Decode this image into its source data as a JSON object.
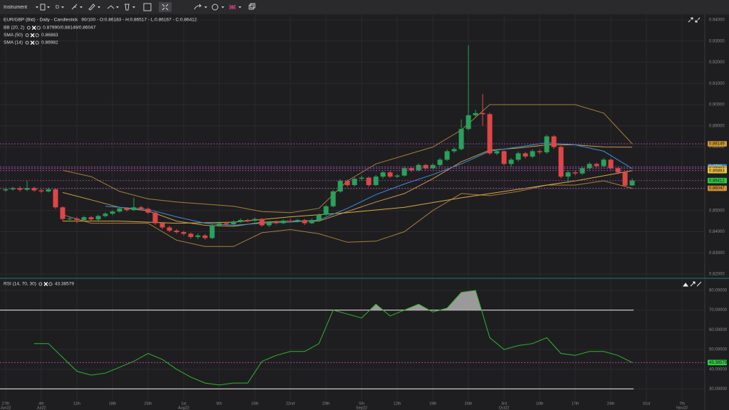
{
  "toolbar": {
    "instrument": "Instrument",
    "timeframe": "D"
  },
  "chart_data": [
    {
      "type": "candlestick",
      "title": "EUR/GBP (Bid) - Daily - Candlestick",
      "subtitle": "90/100 - O:0.86183 - H:0.86517 - L:0.86167 - C:0.86412",
      "x": [
        0,
        1,
        2,
        3,
        4,
        5,
        6,
        7,
        8,
        9,
        10,
        11,
        12,
        13,
        14,
        15,
        16,
        17,
        18,
        19,
        20,
        21,
        22,
        23,
        24,
        25,
        26,
        27,
        28,
        29,
        30,
        31,
        32,
        33,
        34,
        35,
        36,
        37,
        38,
        39,
        40,
        41,
        42,
        43,
        44,
        45,
        46,
        47,
        48,
        49,
        50,
        51,
        52,
        53,
        54,
        55,
        56,
        57,
        58,
        59,
        60,
        61,
        62,
        63,
        64,
        65,
        66,
        67,
        68,
        69,
        70,
        71,
        72,
        73,
        74,
        75,
        76,
        77,
        78,
        79,
        80,
        81,
        82,
        83,
        84,
        85,
        86,
        87,
        88
      ],
      "open": [
        0.8595,
        0.86,
        0.8605,
        0.8598,
        0.8606,
        0.8595,
        0.859,
        0.86,
        0.8515,
        0.846,
        0.8462,
        0.8455,
        0.8468,
        0.8458,
        0.8474,
        0.8485,
        0.8495,
        0.851,
        0.8502,
        0.8515,
        0.8508,
        0.849,
        0.844,
        0.842,
        0.8405,
        0.8398,
        0.839,
        0.8375,
        0.8382,
        0.837,
        0.843,
        0.844,
        0.8435,
        0.8448,
        0.8455,
        0.8452,
        0.846,
        0.843,
        0.8445,
        0.844,
        0.8452,
        0.845,
        0.8455,
        0.844,
        0.8455,
        0.848,
        0.852,
        0.859,
        0.864,
        0.862,
        0.865,
        0.8655,
        0.862,
        0.866,
        0.868,
        0.866,
        0.8665,
        0.87,
        0.869,
        0.8715,
        0.87,
        0.8715,
        0.874,
        0.878,
        0.879,
        0.8885,
        0.895,
        0.896,
        0.8955,
        0.877,
        0.878,
        0.872,
        0.874,
        0.877,
        0.8755,
        0.878,
        0.8775,
        0.885,
        0.88,
        0.866,
        0.868,
        0.8675,
        0.87,
        0.872,
        0.871,
        0.874,
        0.87,
        0.868,
        0.86183
      ],
      "high": [
        0.8608,
        0.8612,
        0.8614,
        0.864,
        0.8612,
        0.8602,
        0.8608,
        0.8604,
        0.852,
        0.847,
        0.847,
        0.8475,
        0.8474,
        0.848,
        0.8492,
        0.8502,
        0.8518,
        0.8516,
        0.856,
        0.8522,
        0.8514,
        0.8495,
        0.8446,
        0.8428,
        0.8412,
        0.8404,
        0.8396,
        0.839,
        0.8388,
        0.8436,
        0.8448,
        0.8446,
        0.8454,
        0.8462,
        0.846,
        0.8466,
        0.8464,
        0.845,
        0.8452,
        0.8458,
        0.8462,
        0.846,
        0.846,
        0.8462,
        0.8486,
        0.8526,
        0.8596,
        0.8648,
        0.8646,
        0.8656,
        0.8664,
        0.866,
        0.8668,
        0.8686,
        0.8688,
        0.8672,
        0.8708,
        0.8706,
        0.8722,
        0.872,
        0.8722,
        0.8748,
        0.8788,
        0.8798,
        0.893,
        0.928,
        0.8975,
        0.905,
        0.8962,
        0.879,
        0.8786,
        0.8748,
        0.8778,
        0.8776,
        0.8788,
        0.8788,
        0.8858,
        0.8856,
        0.8806,
        0.869,
        0.8688,
        0.8708,
        0.8728,
        0.8726,
        0.8748,
        0.8746,
        0.8706,
        0.8686,
        0.86517
      ],
      "low": [
        0.8588,
        0.8594,
        0.859,
        0.8592,
        0.8588,
        0.8582,
        0.8585,
        0.8508,
        0.8452,
        0.8455,
        0.844,
        0.8448,
        0.845,
        0.8452,
        0.8468,
        0.8478,
        0.849,
        0.8495,
        0.8498,
        0.85,
        0.8484,
        0.8432,
        0.8412,
        0.8398,
        0.839,
        0.8382,
        0.8368,
        0.8366,
        0.8362,
        0.8365,
        0.8424,
        0.8428,
        0.843,
        0.8442,
        0.8445,
        0.8446,
        0.8424,
        0.8422,
        0.8434,
        0.8435,
        0.8444,
        0.8443,
        0.8432,
        0.8436,
        0.845,
        0.8474,
        0.8515,
        0.8584,
        0.8612,
        0.8614,
        0.8642,
        0.8612,
        0.8616,
        0.8652,
        0.8654,
        0.8654,
        0.866,
        0.8682,
        0.8684,
        0.8692,
        0.8694,
        0.8708,
        0.8734,
        0.8772,
        0.8784,
        0.8878,
        0.894,
        0.89,
        0.8762,
        0.8762,
        0.8712,
        0.8706,
        0.8732,
        0.8746,
        0.8748,
        0.8766,
        0.8768,
        0.8792,
        0.8652,
        0.863,
        0.8666,
        0.8668,
        0.8692,
        0.8702,
        0.8704,
        0.8692,
        0.8672,
        0.8612,
        0.86167
      ],
      "close": [
        0.86,
        0.8605,
        0.8598,
        0.8606,
        0.8595,
        0.859,
        0.86,
        0.8515,
        0.846,
        0.8462,
        0.8455,
        0.8468,
        0.8458,
        0.8474,
        0.8485,
        0.8495,
        0.851,
        0.8502,
        0.8515,
        0.8508,
        0.849,
        0.844,
        0.842,
        0.8405,
        0.8398,
        0.839,
        0.8375,
        0.8382,
        0.837,
        0.843,
        0.844,
        0.8435,
        0.8448,
        0.8455,
        0.8452,
        0.846,
        0.843,
        0.8445,
        0.844,
        0.8452,
        0.845,
        0.8455,
        0.844,
        0.8455,
        0.848,
        0.852,
        0.859,
        0.864,
        0.862,
        0.865,
        0.8655,
        0.862,
        0.866,
        0.868,
        0.866,
        0.8665,
        0.87,
        0.869,
        0.8715,
        0.87,
        0.8715,
        0.874,
        0.878,
        0.879,
        0.8885,
        0.895,
        0.896,
        0.8955,
        0.877,
        0.878,
        0.872,
        0.874,
        0.877,
        0.8755,
        0.878,
        0.8775,
        0.885,
        0.88,
        0.866,
        0.868,
        0.8675,
        0.87,
        0.872,
        0.871,
        0.874,
        0.87,
        0.868,
        0.8618,
        0.86412
      ],
      "up_color": "#27a35a",
      "down_color": "#e04646",
      "indicators": [
        {
          "name": "BB (20, 2)",
          "readout": "0.87990/0.88149/0.86047",
          "lines": [
            {
              "color": "#a87d3c",
              "x": [
                8,
                12,
                16,
                20,
                24,
                28,
                32,
                36,
                40,
                44,
                48,
                52,
                56,
                60,
                64,
                68,
                72,
                76,
                80,
                84,
                88
              ],
              "values": [
                0.869,
                0.866,
                0.859,
                0.8555,
                0.854,
                0.853,
                0.852,
                0.8495,
                0.849,
                0.851,
                0.864,
                0.872,
                0.876,
                0.88,
                0.888,
                0.9,
                0.9,
                0.9,
                0.9,
                0.896,
                0.8815
              ]
            },
            {
              "color": "#c99a45",
              "x": [
                8,
                12,
                16,
                20,
                24,
                28,
                32,
                36,
                40,
                44,
                48,
                52,
                56,
                60,
                64,
                68,
                72,
                76,
                80,
                84,
                88
              ],
              "values": [
                0.8585,
                0.855,
                0.8515,
                0.8498,
                0.845,
                0.843,
                0.8425,
                0.8445,
                0.845,
                0.845,
                0.8495,
                0.854,
                0.858,
                0.865,
                0.873,
                0.8785,
                0.8795,
                0.881,
                0.881,
                0.88,
                0.8799
              ]
            },
            {
              "color": "#a87d3c",
              "x": [
                8,
                12,
                16,
                20,
                24,
                28,
                32,
                36,
                40,
                44,
                48,
                52,
                56,
                60,
                64,
                68,
                72,
                76,
                80,
                84,
                88
              ],
              "values": [
                0.848,
                0.844,
                0.844,
                0.844,
                0.836,
                0.833,
                0.833,
                0.8395,
                0.841,
                0.839,
                0.835,
                0.8355,
                0.84,
                0.85,
                0.858,
                0.857,
                0.859,
                0.862,
                0.862,
                0.864,
                0.8605
              ]
            }
          ]
        },
        {
          "name": "SMA (50)",
          "readout": "0.86883",
          "lines": [
            {
              "color": "#d8a848",
              "x": [
                8,
                16,
                24,
                32,
                40,
                48,
                56,
                64,
                72,
                80,
                88
              ],
              "values": [
                0.845,
                0.845,
                0.844,
                0.8445,
                0.847,
                0.849,
                0.8515,
                0.856,
                0.86,
                0.864,
                0.8688
              ]
            }
          ]
        },
        {
          "name": "SMA (14)",
          "readout": "0.86982",
          "lines": [
            {
              "color": "#3b8fd9",
              "x": [
                14,
                16,
                20,
                24,
                28,
                32,
                36,
                40,
                44,
                48,
                52,
                56,
                60,
                64,
                68,
                72,
                76,
                80,
                84,
                88
              ],
              "values": [
                0.852,
                0.8515,
                0.8505,
                0.847,
                0.844,
                0.843,
                0.844,
                0.8445,
                0.8455,
                0.851,
                0.8575,
                0.8625,
                0.867,
                0.872,
                0.878,
                0.88,
                0.882,
                0.881,
                0.878,
                0.8698
              ]
            }
          ]
        }
      ],
      "tags": [
        {
          "value": 0.88149,
          "color": "#d39a2a"
        },
        {
          "value": 0.8706,
          "color": "#2e86de"
        },
        {
          "value": 0.86982,
          "color": "#e0a030"
        },
        {
          "value": 0.86883,
          "color": "#e8c840"
        },
        {
          "value": 0.86412,
          "color": "#2ecc40"
        },
        {
          "value": 0.86047,
          "color": "#d09030"
        }
      ],
      "xlim": [
        -0.8,
        98.2
      ],
      "ylim": [
        0.8183,
        0.9427
      ],
      "yticks": [
        {
          "value": 0.82,
          "label": "0.82000"
        },
        {
          "value": 0.83,
          "label": "0.83000"
        },
        {
          "value": 0.84,
          "label": "0.84000"
        },
        {
          "value": 0.85,
          "label": "0.85000"
        },
        {
          "value": 0.86,
          "label": "0.86000"
        },
        {
          "value": 0.87,
          "label": "0.87000"
        },
        {
          "value": 0.88,
          "label": "0.88000"
        },
        {
          "value": 0.89,
          "label": "0.89000"
        },
        {
          "value": 0.9,
          "label": "0.90000"
        },
        {
          "value": 0.91,
          "label": "0.91000"
        },
        {
          "value": 0.92,
          "label": "0.92000"
        },
        {
          "value": 0.93,
          "label": "0.93000"
        },
        {
          "value": 0.94,
          "label": "0.94000"
        }
      ],
      "grid": true
    },
    {
      "type": "line",
      "title": "RSI (14, 70, 30)",
      "series": [
        {
          "name": "43.38579",
          "color": "#2fb52f",
          "x": [
            4,
            6,
            8,
            10,
            12,
            14,
            16,
            18,
            20,
            22,
            24,
            26,
            28,
            30,
            32,
            34,
            36,
            38,
            40,
            42,
            44,
            46,
            48,
            50,
            52,
            54,
            56,
            58,
            60,
            62,
            64,
            66,
            68,
            70,
            72,
            74,
            76,
            78,
            80,
            82,
            84,
            86,
            88
          ],
          "values": [
            53,
            53,
            46,
            39,
            37,
            38,
            41,
            44,
            48,
            45,
            40,
            36,
            33,
            32,
            33,
            33,
            44,
            47,
            49,
            49,
            53,
            70,
            68,
            66,
            73,
            67,
            70,
            73,
            69,
            71,
            79,
            80,
            56,
            50,
            52,
            53,
            56,
            48,
            47,
            49,
            49,
            47,
            43.38579
          ]
        }
      ],
      "levels": [
        70,
        30
      ],
      "overbought_fill": "#9a9a9a",
      "tags": [
        {
          "value": 43.38579,
          "color": "#2ecc40"
        }
      ],
      "xlim": [
        -0.8,
        98.2
      ],
      "ylim": [
        24,
        85.4
      ],
      "yticks": [
        {
          "value": 30,
          "label": "30.00000"
        },
        {
          "value": 40,
          "label": "40.00000"
        },
        {
          "value": 50,
          "label": "50.00000"
        },
        {
          "value": 60,
          "label": "60.00000"
        },
        {
          "value": 70,
          "label": "70.00000"
        },
        {
          "value": 80,
          "label": "80.00000"
        }
      ],
      "xticks": [
        {
          "value": 0,
          "label": "27th"
        },
        {
          "value": 5,
          "label": "4th"
        },
        {
          "value": 10,
          "label": "11th"
        },
        {
          "value": 15,
          "label": "18th"
        },
        {
          "value": 20,
          "label": "25th"
        },
        {
          "value": 25,
          "label": "1st"
        },
        {
          "value": 30,
          "label": "8th"
        },
        {
          "value": 35,
          "label": "15th"
        },
        {
          "value": 40,
          "label": "22nd"
        },
        {
          "value": 45,
          "label": "29th"
        },
        {
          "value": 50,
          "label": "5th"
        },
        {
          "value": 55,
          "label": "12th"
        },
        {
          "value": 60,
          "label": "19th"
        },
        {
          "value": 65,
          "label": "26th"
        },
        {
          "value": 70,
          "label": "3rd"
        },
        {
          "value": 75,
          "label": "10th"
        },
        {
          "value": 80,
          "label": "17th"
        },
        {
          "value": 85,
          "label": "24th"
        },
        {
          "value": 90,
          "label": "31st"
        },
        {
          "value": 95,
          "label": "7th"
        }
      ],
      "month_ticks": [
        {
          "value": 0,
          "label": "Jun22"
        },
        {
          "value": 5,
          "label": "Jul22"
        },
        {
          "value": 25,
          "label": "Aug22"
        },
        {
          "value": 50,
          "label": "Sep22"
        },
        {
          "value": 70,
          "label": "Oct22"
        },
        {
          "value": 95,
          "label": "Nov22"
        }
      ],
      "grid": true
    }
  ]
}
